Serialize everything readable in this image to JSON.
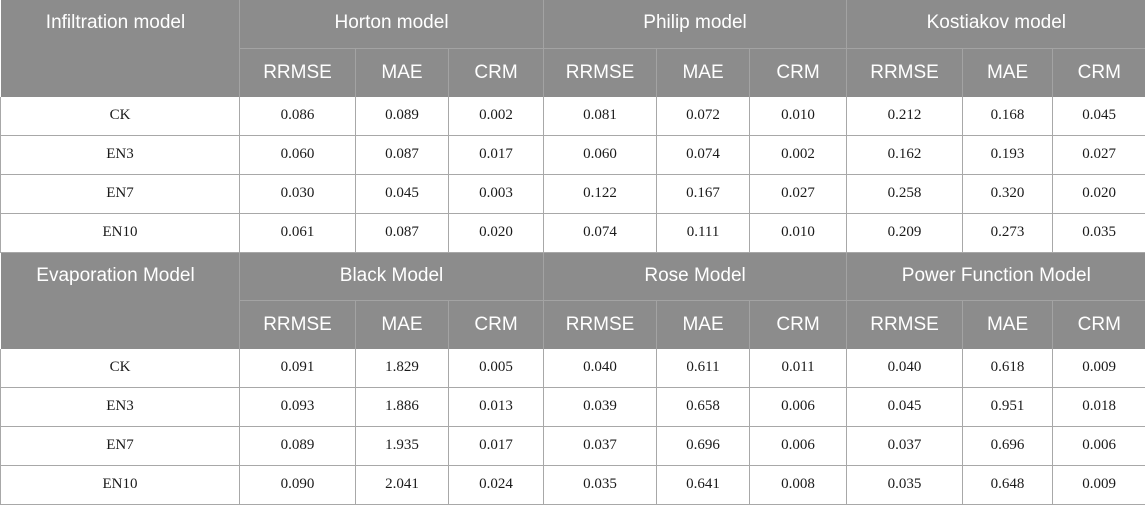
{
  "sections": [
    {
      "title": "Infiltration model",
      "models": [
        "Horton model",
        "Philip model",
        "Kostiakov model"
      ],
      "metrics": [
        "RRMSE",
        "MAE",
        "CRM"
      ],
      "rows": [
        {
          "label": "CK",
          "values": [
            "0.086",
            "0.089",
            "0.002",
            "0.081",
            "0.072",
            "0.010",
            "0.212",
            "0.168",
            "0.045"
          ]
        },
        {
          "label": "EN3",
          "values": [
            "0.060",
            "0.087",
            "0.017",
            "0.060",
            "0.074",
            "0.002",
            "0.162",
            "0.193",
            "0.027"
          ]
        },
        {
          "label": "EN7",
          "values": [
            "0.030",
            "0.045",
            "0.003",
            "0.122",
            "0.167",
            "0.027",
            "0.258",
            "0.320",
            "0.020"
          ]
        },
        {
          "label": "EN10",
          "values": [
            "0.061",
            "0.087",
            "0.020",
            "0.074",
            "0.111",
            "0.010",
            "0.209",
            "0.273",
            "0.035"
          ]
        }
      ]
    },
    {
      "title": "Evaporation Model",
      "models": [
        "Black Model",
        "Rose Model",
        "Power Function Model"
      ],
      "metrics": [
        "RRMSE",
        "MAE",
        "CRM"
      ],
      "rows": [
        {
          "label": "CK",
          "values": [
            "0.091",
            "1.829",
            "0.005",
            "0.040",
            "0.611",
            "0.011",
            "0.040",
            "0.618",
            "0.009"
          ]
        },
        {
          "label": "EN3",
          "values": [
            "0.093",
            "1.886",
            "0.013",
            "0.039",
            "0.658",
            "0.006",
            "0.045",
            "0.951",
            "0.018"
          ]
        },
        {
          "label": "EN7",
          "values": [
            "0.089",
            "1.935",
            "0.017",
            "0.037",
            "0.696",
            "0.006",
            "0.037",
            "0.696",
            "0.006"
          ]
        },
        {
          "label": "EN10",
          "values": [
            "0.090",
            "2.041",
            "0.024",
            "0.035",
            "0.641",
            "0.008",
            "0.035",
            "0.648",
            "0.009"
          ]
        }
      ]
    }
  ]
}
